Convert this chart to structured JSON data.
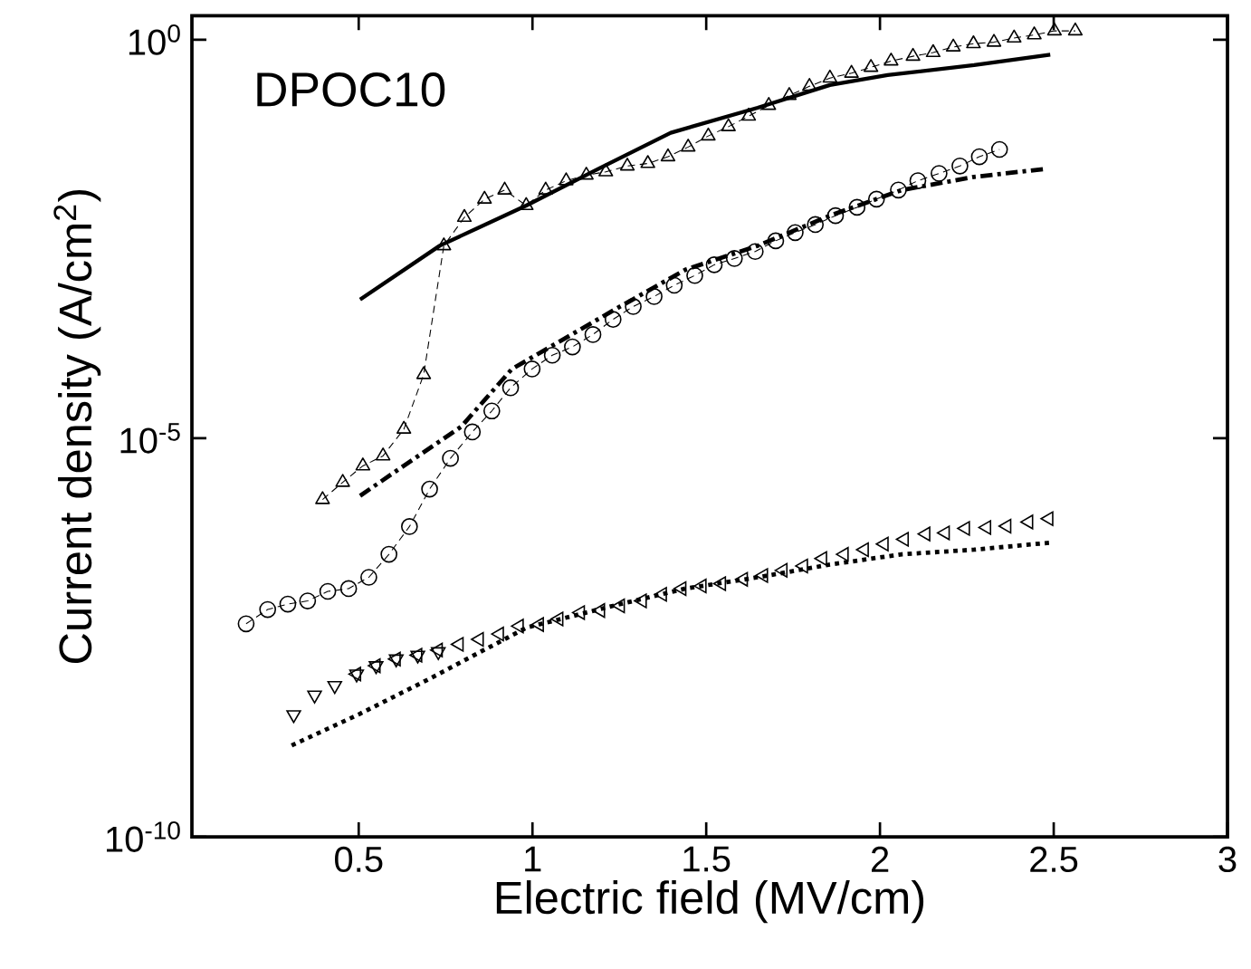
{
  "chart_data": {
    "type": "line",
    "xlabel": "Electric field (MV/cm)",
    "ylabel": "Current density (A/cm$^{2}$)",
    "annotations": [
      "DPOC10"
    ],
    "xlim": [
      0.02,
      3
    ],
    "ylim": [
      1e-10,
      2
    ],
    "log": "y",
    "xticks": [
      0.5,
      1,
      1.5,
      2,
      2.5,
      3
    ],
    "yticks": [
      {
        "value": 1e-10,
        "label": "10$^{-10}$"
      },
      {
        "value": 1e-05,
        "label": "10$^{-5}$"
      },
      {
        "value": 1,
        "label": "10$^{0}$"
      }
    ],
    "series": [
      {
        "color": "#000000",
        "marker": "triangle",
        "line_style": "dashed",
        "x": [
          0.396,
          0.454,
          0.512,
          0.57,
          0.63,
          0.687,
          0.745,
          0.804,
          0.862,
          0.92,
          0.982,
          1.038,
          1.097,
          1.155,
          1.211,
          1.273,
          1.332,
          1.39,
          1.448,
          1.506,
          1.564,
          1.622,
          1.68,
          1.739,
          1.797,
          1.856,
          1.918,
          1.974,
          2.032,
          2.095,
          2.153,
          2.211,
          2.269,
          2.328,
          2.386,
          2.444,
          2.502,
          2.562
        ],
        "values": [
          1.7e-06,
          2.8e-06,
          4.5e-06,
          6e-06,
          1.3e-05,
          6.3e-05,
          0.0026,
          0.0059,
          0.01,
          0.013,
          0.0083,
          0.013,
          0.017,
          0.02,
          0.022,
          0.026,
          0.028,
          0.034,
          0.045,
          0.062,
          0.081,
          0.11,
          0.15,
          0.2,
          0.26,
          0.33,
          0.38,
          0.45,
          0.54,
          0.62,
          0.69,
          0.81,
          0.89,
          0.93,
          1.05,
          1.15,
          1.29,
          1.29
        ]
      },
      {
        "color": "#000000",
        "marker": "none",
        "line_style": "solid",
        "x": [
          0.504,
          0.733,
          0.982,
          1.19,
          1.398,
          1.648,
          1.856,
          2.022,
          2.271,
          2.49
        ],
        "values": [
          0.00055,
          0.0026,
          0.0083,
          0.024,
          0.068,
          0.14,
          0.27,
          0.36,
          0.48,
          0.65
        ]
      },
      {
        "color": "#000000",
        "marker": "circle",
        "line_style": "dashed",
        "x": [
          0.176,
          0.238,
          0.296,
          0.353,
          0.411,
          0.471,
          0.529,
          0.587,
          0.646,
          0.704,
          0.764,
          0.827,
          0.883,
          0.937,
          0.999,
          1.057,
          1.115,
          1.174,
          1.232,
          1.29,
          1.35,
          1.408,
          1.467,
          1.523,
          1.581,
          1.641,
          1.7,
          1.756,
          1.814,
          1.872,
          1.934,
          1.99,
          2.053,
          2.109,
          2.17,
          2.23,
          2.286,
          2.344
        ],
        "values": [
          4.7e-08,
          7.1e-08,
          8.3e-08,
          9.1e-08,
          1.2e-07,
          1.3e-07,
          1.8e-07,
          3.5e-07,
          7.8e-07,
          2.3e-06,
          5.6e-06,
          1.2e-05,
          2.2e-05,
          4.3e-05,
          7.4e-05,
          0.00011,
          0.00014,
          0.0002,
          0.00031,
          0.00045,
          0.0006,
          0.00083,
          0.0011,
          0.0015,
          0.0018,
          0.0022,
          0.003,
          0.0038,
          0.0048,
          0.0062,
          0.0079,
          0.01,
          0.013,
          0.017,
          0.021,
          0.026,
          0.034,
          0.042
        ]
      },
      {
        "color": "#000000",
        "marker": "none",
        "line_style": "dashdot",
        "x": [
          0.504,
          0.795,
          0.941,
          1.232,
          1.44,
          1.648,
          1.856,
          2.063,
          2.271,
          2.479
        ],
        "values": [
          1.9e-06,
          1.4e-05,
          7.4e-05,
          0.0004,
          0.0013,
          0.0026,
          0.0062,
          0.013,
          0.019,
          0.024
        ]
      },
      {
        "type": "scatter",
        "color": "#000000",
        "marker": "triangle-down",
        "x": [
          0.313,
          0.373,
          0.431,
          0.494,
          0.55,
          0.608,
          0.67,
          0.729
        ],
        "values": [
          3.4e-09,
          6e-09,
          7.9e-09,
          1.1e-08,
          1.4e-08,
          1.7e-08,
          1.9e-08,
          2.1e-08
        ]
      },
      {
        "type": "scatter",
        "color": "#000000",
        "marker": "triangle-left",
        "x": [
          0.494,
          0.55,
          0.608,
          0.67,
          0.729,
          0.789,
          0.847,
          0.905,
          0.962,
          1.02,
          1.076,
          1.138,
          1.196,
          1.253,
          1.316,
          1.374,
          1.43,
          1.488,
          1.544,
          1.607,
          1.665,
          1.721,
          1.78,
          1.835,
          1.897,
          1.955,
          2.012,
          2.07,
          2.132,
          2.188,
          2.246,
          2.307,
          2.365,
          2.428,
          2.486
        ],
        "values": [
          1.1e-08,
          1.4e-08,
          1.7e-08,
          1.9e-08,
          2.2e-08,
          2.6e-08,
          3e-08,
          3.5e-08,
          4.4e-08,
          4.6e-08,
          5.4e-08,
          6.5e-08,
          6.9e-08,
          7.9e-08,
          9.1e-08,
          1.1e-07,
          1.3e-07,
          1.4e-07,
          1.5e-07,
          1.7e-07,
          1.9e-07,
          2.2e-07,
          2.5e-07,
          3.1e-07,
          3.5e-07,
          4e-07,
          4.7e-07,
          5.4e-07,
          6.3e-07,
          6.5e-07,
          7.4e-07,
          7.6e-07,
          7.9e-07,
          8.9e-07,
          9.8e-07
        ]
      },
      {
        "color": "#000000",
        "marker": "none",
        "line_style": "dotted",
        "x": [
          0.307,
          0.504,
          0.712,
          0.982,
          1.232,
          1.44,
          1.648,
          1.856,
          2.063,
          2.271,
          2.49
        ],
        "values": [
          1.4e-09,
          3.5e-09,
          1e-08,
          4.2e-08,
          7.9e-08,
          1.3e-07,
          1.8e-07,
          2.6e-07,
          3.5e-07,
          4e-07,
          4.9e-07
        ]
      }
    ]
  }
}
